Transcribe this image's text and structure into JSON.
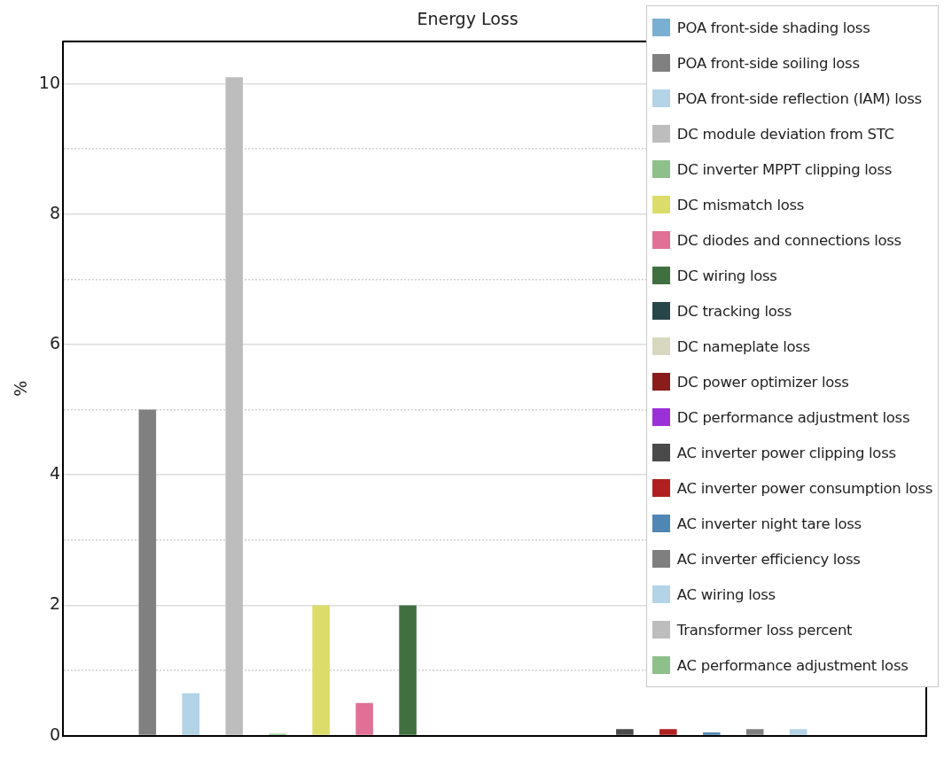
{
  "chart_data": {
    "type": "bar",
    "title": "Energy Loss",
    "ylabel": "%",
    "categories": [
      null
    ],
    "ylim": [
      0,
      10.65
    ],
    "yticks": [
      0,
      {
        "value": 1,
        "label": null
      },
      2,
      {
        "value": 3,
        "label": null
      },
      4,
      {
        "value": 5,
        "label": null
      },
      6,
      {
        "value": 7,
        "label": null
      },
      8,
      {
        "value": 9,
        "label": null
      },
      10
    ],
    "grid": "y",
    "legend": "top right",
    "series": [
      {
        "name": "POA front-side shading loss",
        "color": "#79b0d2",
        "values": [
          0
        ]
      },
      {
        "name": "POA front-side soiling loss",
        "color": "#808080",
        "values": [
          5.0
        ]
      },
      {
        "name": "POA front-side reflection (IAM) loss",
        "color": "#b3d3e6",
        "values": [
          0.65
        ]
      },
      {
        "name": "DC module deviation from STC",
        "color": "#bdbdbd",
        "values": [
          10.1
        ]
      },
      {
        "name": "DC inverter MPPT clipping loss",
        "color": "#8dc08a",
        "values": [
          0.03
        ]
      },
      {
        "name": "DC mismatch loss",
        "color": "#dcdc6a",
        "values": [
          2.0
        ]
      },
      {
        "name": "DC diodes and connections loss",
        "color": "#e07096",
        "values": [
          0.5
        ]
      },
      {
        "name": "DC wiring loss",
        "color": "#417040",
        "values": [
          2.0
        ]
      },
      {
        "name": "DC tracking loss",
        "color": "#27464a",
        "values": [
          0
        ]
      },
      {
        "name": "DC nameplate loss",
        "color": "#d8d8c0",
        "values": [
          0
        ]
      },
      {
        "name": "DC power optimizer loss",
        "color": "#8b1c1c",
        "values": [
          0
        ]
      },
      {
        "name": "DC performance adjustment loss",
        "color": "#9b30d9",
        "values": [
          0
        ]
      },
      {
        "name": "AC inverter power clipping loss",
        "color": "#4a4a4a",
        "values": [
          0.1
        ]
      },
      {
        "name": "AC inverter power consumption loss",
        "color": "#b02020",
        "values": [
          0.1
        ]
      },
      {
        "name": "AC inverter night tare loss",
        "color": "#4f86b3",
        "values": [
          0.05
        ]
      },
      {
        "name": "AC inverter efficiency loss",
        "color": "#7f7f7f",
        "values": [
          0.1
        ]
      },
      {
        "name": "AC wiring loss",
        "color": "#b3d3e6",
        "values": [
          0.1
        ]
      },
      {
        "name": "Transformer loss percent",
        "color": "#bdbdbd",
        "values": [
          0
        ]
      },
      {
        "name": "AC performance adjustment loss",
        "color": "#8dc08a",
        "values": [
          0
        ]
      }
    ]
  }
}
